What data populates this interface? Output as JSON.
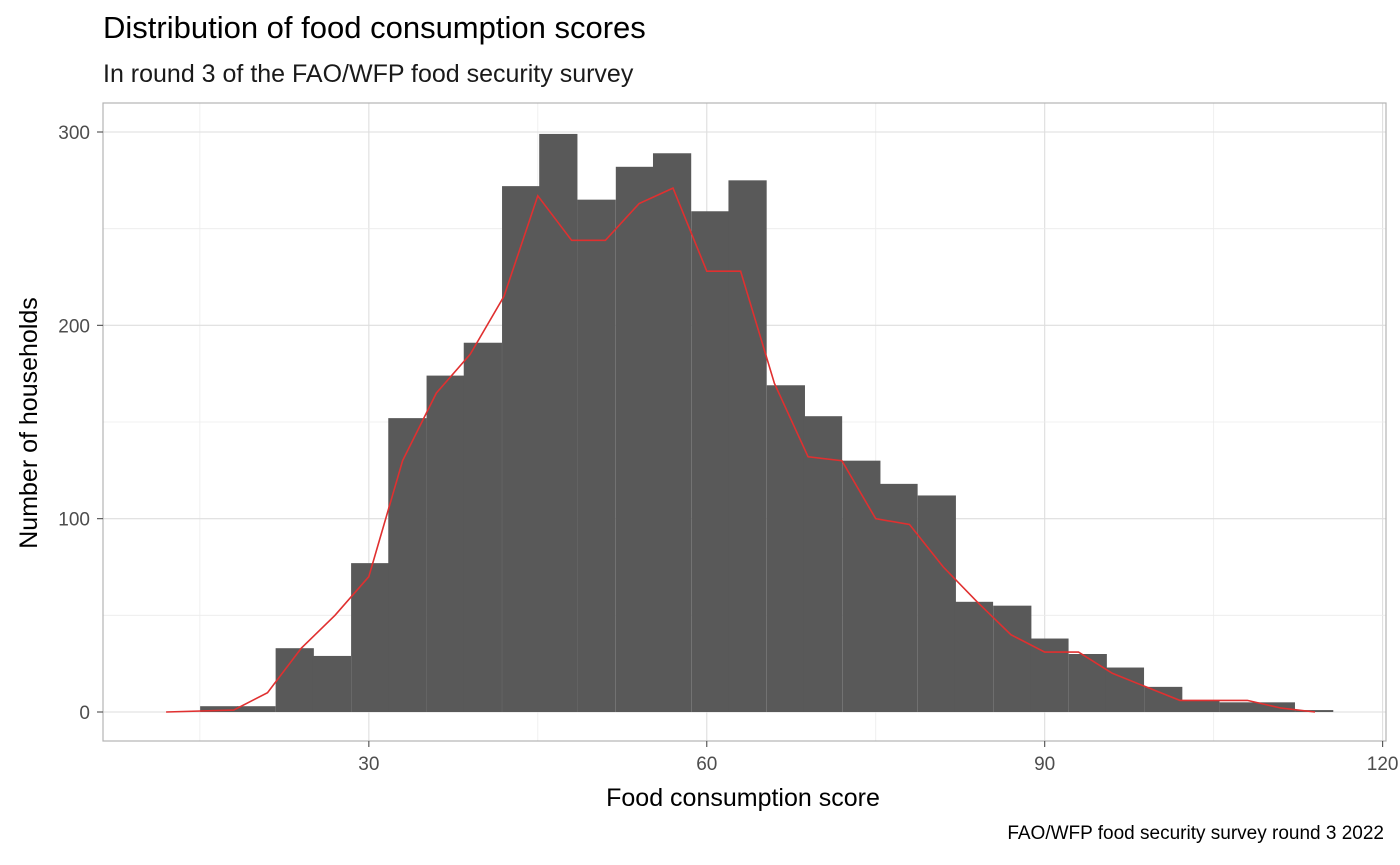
{
  "chart_data": {
    "type": "bar",
    "title": "Distribution of food consumption scores",
    "subtitle": "In round 3 of the FAO/WFP food security survey",
    "caption": "FAO/WFP food security survey round 3 2022",
    "xlabel": "Food consumption score",
    "ylabel": "Number of households",
    "xlim": [
      6.4,
      120.3
    ],
    "ylim": [
      -15,
      315
    ],
    "xticks": [
      30,
      60,
      90,
      120
    ],
    "yticks": [
      0,
      100,
      200,
      300
    ],
    "grid": true,
    "bin_width": 3.35,
    "bin_start": 15.0,
    "bar_color": "#595959",
    "line_color": "#e03030",
    "bars": [
      {
        "x": 16.7,
        "count": 3
      },
      {
        "x": 20.0,
        "count": 3
      },
      {
        "x": 23.4,
        "count": 33
      },
      {
        "x": 26.7,
        "count": 29
      },
      {
        "x": 30.1,
        "count": 77
      },
      {
        "x": 33.4,
        "count": 152
      },
      {
        "x": 36.8,
        "count": 174
      },
      {
        "x": 40.1,
        "count": 191
      },
      {
        "x": 43.5,
        "count": 272
      },
      {
        "x": 46.8,
        "count": 299
      },
      {
        "x": 50.2,
        "count": 265
      },
      {
        "x": 53.6,
        "count": 282
      },
      {
        "x": 56.9,
        "count": 289
      },
      {
        "x": 60.3,
        "count": 259
      },
      {
        "x": 63.6,
        "count": 275
      },
      {
        "x": 67.0,
        "count": 169
      },
      {
        "x": 70.3,
        "count": 153
      },
      {
        "x": 73.7,
        "count": 130
      },
      {
        "x": 77.0,
        "count": 118
      },
      {
        "x": 80.4,
        "count": 112
      },
      {
        "x": 83.7,
        "count": 57
      },
      {
        "x": 87.1,
        "count": 55
      },
      {
        "x": 90.4,
        "count": 38
      },
      {
        "x": 93.8,
        "count": 30
      },
      {
        "x": 97.1,
        "count": 23
      },
      {
        "x": 100.5,
        "count": 13
      },
      {
        "x": 103.8,
        "count": 6
      },
      {
        "x": 107.2,
        "count": 5
      },
      {
        "x": 110.5,
        "count": 5
      },
      {
        "x": 113.9,
        "count": 1
      }
    ],
    "line": [
      {
        "x": 12.0,
        "y": 0
      },
      {
        "x": 18.0,
        "y": 1
      },
      {
        "x": 21.0,
        "y": 10
      },
      {
        "x": 24.0,
        "y": 33
      },
      {
        "x": 27.0,
        "y": 50
      },
      {
        "x": 30.0,
        "y": 70
      },
      {
        "x": 33.0,
        "y": 130
      },
      {
        "x": 36.0,
        "y": 165
      },
      {
        "x": 39.0,
        "y": 185
      },
      {
        "x": 42.0,
        "y": 215
      },
      {
        "x": 45.0,
        "y": 267
      },
      {
        "x": 48.0,
        "y": 244
      },
      {
        "x": 51.0,
        "y": 244
      },
      {
        "x": 54.0,
        "y": 263
      },
      {
        "x": 57.0,
        "y": 271
      },
      {
        "x": 60.0,
        "y": 228
      },
      {
        "x": 63.0,
        "y": 228
      },
      {
        "x": 66.0,
        "y": 170
      },
      {
        "x": 69.0,
        "y": 132
      },
      {
        "x": 72.0,
        "y": 130
      },
      {
        "x": 75.0,
        "y": 100
      },
      {
        "x": 78.0,
        "y": 97
      },
      {
        "x": 81.0,
        "y": 75
      },
      {
        "x": 84.0,
        "y": 57
      },
      {
        "x": 87.0,
        "y": 40
      },
      {
        "x": 90.0,
        "y": 31
      },
      {
        "x": 93.0,
        "y": 31
      },
      {
        "x": 96.0,
        "y": 20
      },
      {
        "x": 99.0,
        "y": 13
      },
      {
        "x": 102.0,
        "y": 6
      },
      {
        "x": 105.0,
        "y": 6
      },
      {
        "x": 108.0,
        "y": 6
      },
      {
        "x": 111.0,
        "y": 2
      },
      {
        "x": 114.0,
        "y": 0
      }
    ]
  }
}
